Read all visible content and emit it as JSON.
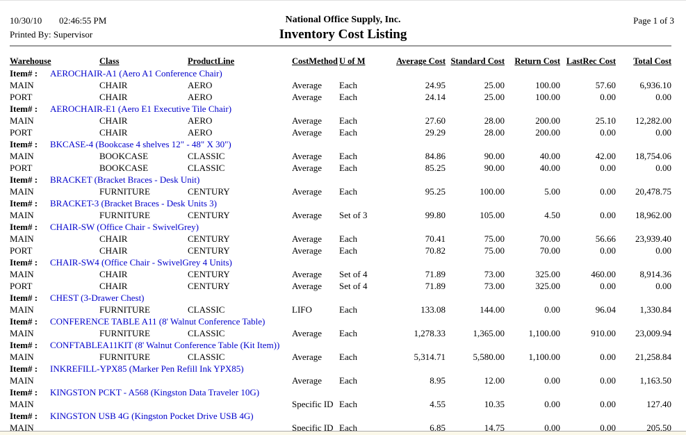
{
  "header": {
    "date": "10/30/10",
    "time": "02:46:55 PM",
    "printed_by": "Printed By: Supervisor",
    "company": "National Office Supply, Inc.",
    "title": "Inventory Cost Listing",
    "page": "Page 1 of 3"
  },
  "colors": {
    "item_blue": "#0000CC",
    "rule_gray": "#9a9a9a",
    "bottom_strip": "#fbf8e9"
  },
  "table": {
    "item_label": "Item# :",
    "columns": [
      "Warehouse",
      "Class",
      "ProductLine",
      "CostMethod",
      "U of M",
      "Average Cost",
      "Standard Cost",
      "Return Cost",
      "LastRec Cost",
      "Total Cost"
    ],
    "column_keys": [
      "warehouse",
      "class",
      "product-line",
      "cost-method",
      "uofm",
      "average-cost",
      "standard-cost",
      "return-cost",
      "lastrec-cost",
      "total-cost"
    ],
    "groups": [
      {
        "item": "AEROCHAIR-A1 (Aero A1 Conference Chair)",
        "rows": [
          [
            "MAIN",
            "CHAIR",
            "AERO",
            "Average",
            "Each",
            "24.95",
            "25.00",
            "100.00",
            "57.60",
            "6,936.10"
          ],
          [
            "PORT",
            "CHAIR",
            "AERO",
            "Average",
            "Each",
            "24.14",
            "25.00",
            "100.00",
            "0.00",
            "0.00"
          ]
        ]
      },
      {
        "item": "AEROCHAIR-E1 (Aero E1 Executive Tile Chair)",
        "rows": [
          [
            "MAIN",
            "CHAIR",
            "AERO",
            "Average",
            "Each",
            "27.60",
            "28.00",
            "200.00",
            "25.10",
            "12,282.00"
          ],
          [
            "PORT",
            "CHAIR",
            "AERO",
            "Average",
            "Each",
            "29.29",
            "28.00",
            "200.00",
            "0.00",
            "0.00"
          ]
        ]
      },
      {
        "item": "BKCASE-4 (Bookcase 4 shelves 12\" - 48\" X 30\")",
        "rows": [
          [
            "MAIN",
            "BOOKCASE",
            "CLASSIC",
            "Average",
            "Each",
            "84.86",
            "90.00",
            "40.00",
            "42.00",
            "18,754.06"
          ],
          [
            "PORT",
            "BOOKCASE",
            "CLASSIC",
            "Average",
            "Each",
            "85.25",
            "90.00",
            "40.00",
            "0.00",
            "0.00"
          ]
        ]
      },
      {
        "item": "BRACKET (Bracket Braces - Desk Unit)",
        "rows": [
          [
            "MAIN",
            "FURNITURE",
            "CENTURY",
            "Average",
            "Each",
            "95.25",
            "100.00",
            "5.00",
            "0.00",
            "20,478.75"
          ]
        ]
      },
      {
        "item": "BRACKET-3 (Bracket Braces - Desk Units 3)",
        "rows": [
          [
            "MAIN",
            "FURNITURE",
            "CENTURY",
            "Average",
            "Set of 3",
            "99.80",
            "105.00",
            "4.50",
            "0.00",
            "18,962.00"
          ]
        ]
      },
      {
        "item": "CHAIR-SW (Office Chair - SwivelGrey)",
        "rows": [
          [
            "MAIN",
            "CHAIR",
            "CENTURY",
            "Average",
            "Each",
            "70.41",
            "75.00",
            "70.00",
            "56.66",
            "23,939.40"
          ],
          [
            "PORT",
            "CHAIR",
            "CENTURY",
            "Average",
            "Each",
            "70.82",
            "75.00",
            "70.00",
            "0.00",
            "0.00"
          ]
        ]
      },
      {
        "item": "CHAIR-SW4 (Office Chair - SwivelGrey 4 Units)",
        "rows": [
          [
            "MAIN",
            "CHAIR",
            "CENTURY",
            "Average",
            "Set of 4",
            "71.89",
            "73.00",
            "325.00",
            "460.00",
            "8,914.36"
          ],
          [
            "PORT",
            "CHAIR",
            "CENTURY",
            "Average",
            "Set of 4",
            "71.89",
            "73.00",
            "325.00",
            "0.00",
            "0.00"
          ]
        ]
      },
      {
        "item": "CHEST (3-Drawer Chest)",
        "rows": [
          [
            "MAIN",
            "FURNITURE",
            "CLASSIC",
            "LIFO",
            "Each",
            "133.08",
            "144.00",
            "0.00",
            "96.04",
            "1,330.84"
          ]
        ]
      },
      {
        "item": "CONFERENCE TABLE A11 (8' Walnut Conference Table)",
        "rows": [
          [
            "MAIN",
            "FURNITURE",
            "CLASSIC",
            "Average",
            "Each",
            "1,278.33",
            "1,365.00",
            "1,100.00",
            "910.00",
            "23,009.94"
          ]
        ]
      },
      {
        "item": "CONFTABLEA11KIT (8' Walnut Conference Table (Kit Item))",
        "rows": [
          [
            "MAIN",
            "FURNITURE",
            "CLASSIC",
            "Average",
            "Each",
            "5,314.71",
            "5,580.00",
            "1,100.00",
            "0.00",
            "21,258.84"
          ]
        ]
      },
      {
        "item": "INKREFILL-YPX85 (Marker Pen Refill Ink YPX85)",
        "rows": [
          [
            "MAIN",
            "",
            "",
            "Average",
            "Each",
            "8.95",
            "12.00",
            "0.00",
            "0.00",
            "1,163.50"
          ]
        ]
      },
      {
        "item": "KINGSTON PCKT - A568 (Kingston Data Traveler 10G)",
        "rows": [
          [
            "MAIN",
            "",
            "",
            "Specific ID",
            "Each",
            "4.55",
            "10.35",
            "0.00",
            "0.00",
            "127.40"
          ]
        ]
      },
      {
        "item": "KINGSTON USB 4G (Kingston Pocket Drive USB 4G)",
        "rows": [
          [
            "MAIN",
            "",
            "",
            "Specific ID",
            "Each",
            "6.85",
            "14.75",
            "0.00",
            "0.00",
            "205.50"
          ]
        ]
      }
    ]
  }
}
